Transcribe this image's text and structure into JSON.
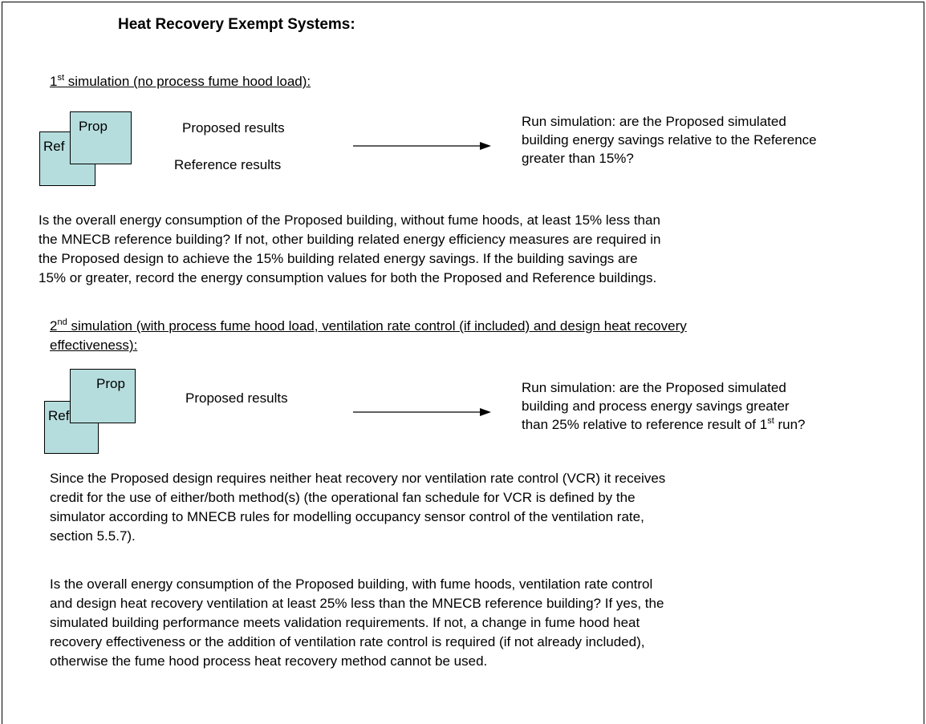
{
  "title": "Heat Recovery Exempt Systems:",
  "simulation_1": {
    "heading": {
      "number": "1",
      "suffix": "st",
      "text": " simulation (no process fume hood load):"
    },
    "diagram": {
      "front_box": "Prop",
      "back_box": "Ref",
      "label_1": "Proposed results",
      "label_2": "Reference results",
      "result_lines": [
        "Run simulation: are the Proposed simulated",
        "building energy savings relative to the Reference",
        "greater than 15%?"
      ]
    },
    "paragraph_lines": [
      "Is the overall energy consumption of the Proposed building, without fume hoods, at least 15% less than",
      "the MNECB reference building? If not, other building related energy efficiency measures are required in",
      "the Proposed design to achieve the 15% building related energy savings. If the building savings are",
      "15% or greater, record the energy consumption values for both the Proposed and Reference buildings."
    ]
  },
  "simulation_2": {
    "heading": {
      "number": "2",
      "suffix": "nd",
      "text": " simulation (with process fume hood load, ventilation rate control (if included) and design heat recovery"
    },
    "heading_continued": "effectiveness):",
    "diagram": {
      "front_box": "Prop",
      "back_box": "Ref",
      "label_1": "Proposed results",
      "result_lines": [
        "Run simulation: are the Proposed simulated",
        "building and process energy savings greater"
      ],
      "result_last": {
        "text": "than 25% relative to reference result of ",
        "number": "1",
        "suffix": "st",
        "end": " run?"
      }
    },
    "paragraph_1_lines": [
      "Since the Proposed design requires neither heat recovery nor ventilation rate control (VCR) it receives",
      "credit for the use of either/both method(s) (the operational fan schedule for VCR is defined by the",
      "simulator according to MNECB rules for modelling occupancy sensor control of the ventilation rate,",
      "section 5.5.7)."
    ],
    "paragraph_2_lines": [
      "Is the overall energy consumption of the Proposed building, with fume hoods, ventilation rate control",
      "and design heat recovery ventilation at least 25% less than the MNECB reference building? If yes, the",
      "simulated building performance meets validation requirements. If not, a change in fume hood heat",
      "recovery effectiveness or the addition of ventilation rate control is required (if not already included),",
      "otherwise the fume hood process heat recovery method cannot be used."
    ]
  }
}
